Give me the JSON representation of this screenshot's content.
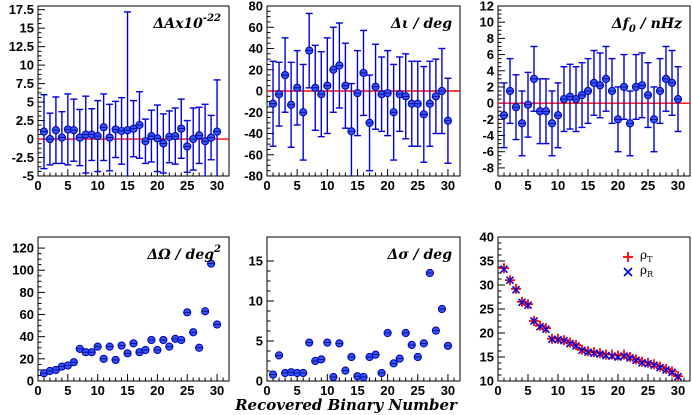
{
  "figure": {
    "xlabel": "Recovered Binary Number"
  },
  "chart_data": [
    {
      "id": "p1",
      "type": "scatter",
      "title": "ΔAx10",
      "title_sup": "-22",
      "xlim": [
        0,
        32
      ],
      "ylim": [
        -5,
        18
      ],
      "xticks": [
        0,
        5,
        10,
        15,
        20,
        25,
        30
      ],
      "yticks": [
        -5,
        -2.5,
        0,
        2.5,
        5,
        7.5,
        10,
        12.5,
        15,
        17.5
      ],
      "ytick_labels": [
        "-5",
        "-2.5",
        "0",
        "2.5",
        "5",
        "7.5",
        "10",
        "12.5",
        "15",
        "17.5"
      ],
      "refline": 0,
      "x": [
        1,
        2,
        3,
        4,
        5,
        6,
        7,
        8,
        9,
        10,
        11,
        12,
        13,
        14,
        15,
        16,
        17,
        18,
        19,
        20,
        21,
        22,
        23,
        24,
        25,
        26,
        27,
        28,
        29,
        30
      ],
      "y": [
        1.0,
        0.0,
        1.2,
        0.2,
        1.3,
        1.2,
        0.2,
        0.6,
        0.6,
        0.4,
        1.6,
        0.2,
        1.3,
        1.1,
        1.2,
        1.4,
        1.9,
        -0.3,
        0.4,
        0.1,
        -0.6,
        0.3,
        0.4,
        1.4,
        -1.0,
        0.0,
        0.5,
        -0.3,
        0.2,
        1.0
      ],
      "err": [
        5.0,
        3.5,
        4.5,
        3.5,
        4.8,
        4.2,
        3.8,
        5.2,
        3.5,
        4.8,
        4.5,
        4.5,
        3.8,
        4.5,
        16.0,
        3.8,
        4.5,
        3.0,
        3.5,
        4.5,
        4.0,
        3.5,
        3.8,
        4.0,
        3.5,
        4.2,
        3.8,
        5.0,
        3.0,
        7.0
      ]
    },
    {
      "id": "p2",
      "type": "scatter",
      "title": "Δι / deg",
      "xlim": [
        0,
        32
      ],
      "ylim": [
        -80,
        80
      ],
      "xticks": [
        0,
        5,
        10,
        15,
        20,
        25,
        30
      ],
      "yticks": [
        -80,
        -60,
        -40,
        -20,
        0,
        20,
        40,
        60,
        80
      ],
      "ytick_labels": [
        "-80",
        "-60",
        "-40",
        "-20",
        "0",
        "20",
        "40",
        "60",
        "80"
      ],
      "refline": 0,
      "x": [
        1,
        2,
        3,
        4,
        5,
        6,
        7,
        8,
        9,
        10,
        11,
        12,
        13,
        14,
        15,
        16,
        17,
        18,
        19,
        20,
        21,
        22,
        23,
        24,
        25,
        26,
        27,
        28,
        29,
        30
      ],
      "y": [
        -12,
        -3,
        15,
        -13,
        3,
        -20,
        38,
        3,
        -3,
        5,
        20,
        24,
        5,
        -38,
        -2,
        17,
        -30,
        4,
        -3,
        -2,
        -20,
        -3,
        -5,
        -12,
        -12,
        -22,
        -12,
        -5,
        0,
        -28
      ],
      "err": [
        40,
        30,
        35,
        40,
        35,
        45,
        35,
        40,
        40,
        45,
        40,
        40,
        40,
        45,
        40,
        40,
        45,
        40,
        35,
        40,
        45,
        35,
        40,
        40,
        40,
        45,
        40,
        35,
        40,
        40
      ]
    },
    {
      "id": "p3",
      "type": "scatter",
      "title": "Δf",
      "title_sub": "0",
      "title_tail": " / nHz",
      "xlim": [
        0,
        32
      ],
      "ylim": [
        -9,
        12
      ],
      "xticks": [
        0,
        5,
        10,
        15,
        20,
        25,
        30
      ],
      "yticks": [
        -8,
        -6,
        -4,
        -2,
        0,
        2,
        4,
        6,
        8,
        10,
        12
      ],
      "ytick_labels": [
        "-8",
        "-6",
        "-4",
        "-2",
        "0",
        "2",
        "4",
        "6",
        "8",
        "10",
        "12"
      ],
      "refline": 0,
      "x": [
        1,
        2,
        3,
        4,
        5,
        6,
        7,
        8,
        9,
        10,
        11,
        12,
        13,
        14,
        15,
        16,
        17,
        18,
        19,
        20,
        21,
        22,
        23,
        24,
        25,
        26,
        27,
        28,
        29,
        30
      ],
      "y": [
        -1.5,
        1.5,
        -0.5,
        -2.5,
        -0.2,
        3.0,
        -1.0,
        -1.0,
        -2.5,
        -1.5,
        0.5,
        0.8,
        0.5,
        1.0,
        1.5,
        2.5,
        2.2,
        3.0,
        1.5,
        -2.0,
        2.0,
        -2.5,
        2.0,
        2.2,
        1.0,
        -2.0,
        1.5,
        3.0,
        2.5,
        0.5
      ],
      "err": [
        4,
        4,
        4,
        4,
        4,
        4,
        4,
        4,
        4,
        4,
        4,
        4,
        4,
        4,
        4,
        4,
        4,
        4,
        4,
        4,
        4,
        4,
        4,
        4,
        4,
        4,
        4,
        4,
        4,
        4
      ]
    },
    {
      "id": "p4",
      "type": "scatter",
      "title": "ΔΩ / deg",
      "title_sup": "2",
      "xlim": [
        0,
        32
      ],
      "ylim": [
        0,
        130
      ],
      "xticks": [
        0,
        5,
        10,
        15,
        20,
        25,
        30
      ],
      "yticks": [
        0,
        20,
        40,
        60,
        80,
        100,
        120
      ],
      "ytick_labels": [
        "0",
        "20",
        "40",
        "60",
        "80",
        "100",
        "120"
      ],
      "x": [
        1,
        2,
        3,
        4,
        5,
        6,
        7,
        8,
        9,
        10,
        11,
        12,
        13,
        14,
        15,
        16,
        17,
        18,
        19,
        20,
        21,
        22,
        23,
        24,
        25,
        26,
        27,
        28,
        29,
        30
      ],
      "y": [
        7,
        9,
        10,
        13,
        14,
        17,
        29,
        26,
        26,
        31,
        20,
        31,
        19,
        32,
        25,
        34,
        26,
        28,
        37,
        28,
        37,
        31,
        38,
        37,
        62,
        44,
        30,
        63,
        106,
        51
      ]
    },
    {
      "id": "p5",
      "type": "scatter",
      "title": "Δσ / deg",
      "xlim": [
        0,
        32
      ],
      "ylim": [
        0,
        18
      ],
      "xticks": [
        0,
        5,
        10,
        15,
        20,
        25,
        30
      ],
      "yticks": [
        0,
        5,
        10,
        15
      ],
      "ytick_labels": [
        "0",
        "5",
        "10",
        "15"
      ],
      "x": [
        1,
        2,
        3,
        4,
        5,
        6,
        7,
        8,
        9,
        10,
        11,
        12,
        13,
        14,
        15,
        16,
        17,
        18,
        19,
        20,
        21,
        22,
        23,
        24,
        25,
        26,
        27,
        28,
        29,
        30
      ],
      "y": [
        0.8,
        3.2,
        1.0,
        1.1,
        1.0,
        1.0,
        4.8,
        2.5,
        2.7,
        4.8,
        0.5,
        4.7,
        1.3,
        3.0,
        0.6,
        0.5,
        3.0,
        3.3,
        1.0,
        6.0,
        2.2,
        2.8,
        6.0,
        4.5,
        3.0,
        4.7,
        13.5,
        6.3,
        9.0,
        4.4
      ]
    },
    {
      "id": "p6",
      "type": "scatter",
      "title": "",
      "xlim": [
        0,
        32
      ],
      "ylim": [
        10,
        40
      ],
      "xticks": [
        0,
        5,
        10,
        15,
        20,
        25,
        30
      ],
      "yticks": [
        10,
        15,
        20,
        25,
        30,
        35,
        40
      ],
      "ytick_labels": [
        "10",
        "15",
        "20",
        "25",
        "30",
        "35",
        "40"
      ],
      "legend": [
        {
          "label": "ρ",
          "sub": "T",
          "marker": "+",
          "color": "#ff0000"
        },
        {
          "label": "ρ",
          "sub": "R",
          "marker": "x",
          "color": "#0000dd"
        }
      ],
      "legend_position": "top-right",
      "x": [
        1,
        2,
        3,
        4,
        5,
        6,
        7,
        8,
        9,
        10,
        11,
        12,
        13,
        14,
        15,
        16,
        17,
        18,
        19,
        20,
        21,
        22,
        23,
        24,
        25,
        26,
        27,
        28,
        29,
        30
      ],
      "series": [
        {
          "name": "ρT",
          "values": [
            33.5,
            31.0,
            29.2,
            26.5,
            26.0,
            22.5,
            21.5,
            21.0,
            18.8,
            18.8,
            18.5,
            18.0,
            17.5,
            16.5,
            16.2,
            16.0,
            15.8,
            15.5,
            15.5,
            15.3,
            15.5,
            15.0,
            14.5,
            14.0,
            13.8,
            13.5,
            13.0,
            12.5,
            12.0,
            11.0
          ]
        },
        {
          "name": "ρR",
          "values": [
            33.3,
            31.0,
            29.0,
            26.4,
            25.8,
            22.5,
            21.3,
            20.8,
            18.7,
            18.6,
            18.4,
            17.8,
            17.3,
            16.4,
            16.0,
            15.8,
            15.6,
            15.3,
            15.2,
            15.0,
            15.2,
            14.8,
            14.3,
            13.8,
            13.6,
            13.3,
            12.8,
            12.3,
            11.8,
            10.9
          ]
        }
      ]
    }
  ]
}
